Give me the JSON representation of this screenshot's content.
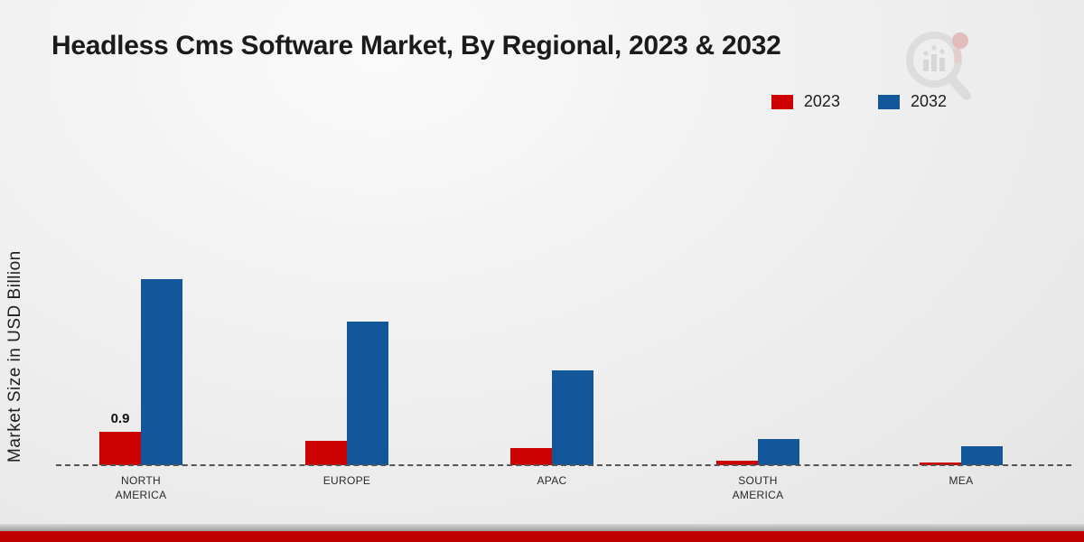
{
  "title": "Headless Cms Software Market, By Regional, 2023 & 2032",
  "ylabel": "Market Size in USD Billion",
  "colors": {
    "series_2023": "#cc0001",
    "series_2032": "#11579a",
    "footer_accent": "#c00000"
  },
  "chart_data": {
    "type": "bar",
    "title": "Headless Cms Software Market, By Regional, 2023 & 2032",
    "xlabel": "",
    "ylabel": "Market Size in USD Billion",
    "ylim": [
      0,
      5.5
    ],
    "grid": false,
    "legend_position": "top-right",
    "categories": [
      "NORTH AMERICA",
      "EUROPE",
      "APAC",
      "SOUTH AMERICA",
      "MEA"
    ],
    "series": [
      {
        "name": "2023",
        "color": "#cc0001",
        "values": [
          0.9,
          0.65,
          0.45,
          0.12,
          0.05
        ],
        "labels": [
          "0.9",
          "",
          "",
          "",
          ""
        ]
      },
      {
        "name": "2032",
        "color": "#11579a",
        "values": [
          5.0,
          3.85,
          2.55,
          0.7,
          0.5
        ],
        "labels": [
          "",
          "",
          "",
          "",
          ""
        ]
      }
    ]
  }
}
